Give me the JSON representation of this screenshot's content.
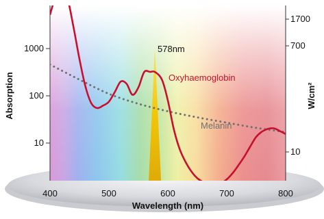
{
  "chart_data": {
    "type": "line",
    "title": "",
    "xlabel": "Wavelength (nm)",
    "ylabel": "Absorption",
    "ylabel_right": "W/cm²",
    "xlim": [
      400,
      800
    ],
    "x_ticks": [
      "400",
      "500",
      "600",
      "700",
      "800"
    ],
    "y_ticks_left": [
      "10",
      "100",
      "1000"
    ],
    "y_ticks_right": [
      "10",
      "700",
      "1700"
    ],
    "y_scale": "log",
    "grid": false,
    "background": "visible-spectrum gradient",
    "series": [
      {
        "name": "Oxyhaemoglobin",
        "color": "#c8102e",
        "x": [
          400,
          410,
          420,
          430,
          440,
          450,
          460,
          470,
          480,
          490,
          500,
          510,
          520,
          530,
          540,
          550,
          560,
          570,
          578,
          590,
          600,
          610,
          620,
          630,
          640,
          650,
          660,
          670,
          680,
          690,
          700,
          710,
          720,
          730,
          740,
          750,
          760,
          770,
          780,
          790,
          800
        ],
        "y": [
          5200,
          13000,
          16000,
          11000,
          2800,
          600,
          160,
          70,
          55,
          62,
          75,
          120,
          200,
          180,
          105,
          150,
          320,
          320,
          320,
          220,
          80,
          20,
          7.5,
          4.0,
          2.5,
          1.8,
          1.5,
          1.4,
          1.3,
          1.4,
          1.7,
          2.3,
          3.4,
          5.2,
          8.5,
          13.5,
          17.5,
          20,
          20.5,
          18,
          15.5
        ]
      },
      {
        "name": "Melanin",
        "color": "#707070",
        "x": [
          400,
          450,
          500,
          550,
          600,
          650,
          700,
          750,
          800
        ],
        "y": [
          460,
          220,
          110,
          68,
          47,
          35,
          27,
          21,
          17
        ]
      }
    ],
    "annotations": [
      {
        "text": "578nm",
        "x": 578,
        "type": "laser line"
      }
    ]
  }
}
